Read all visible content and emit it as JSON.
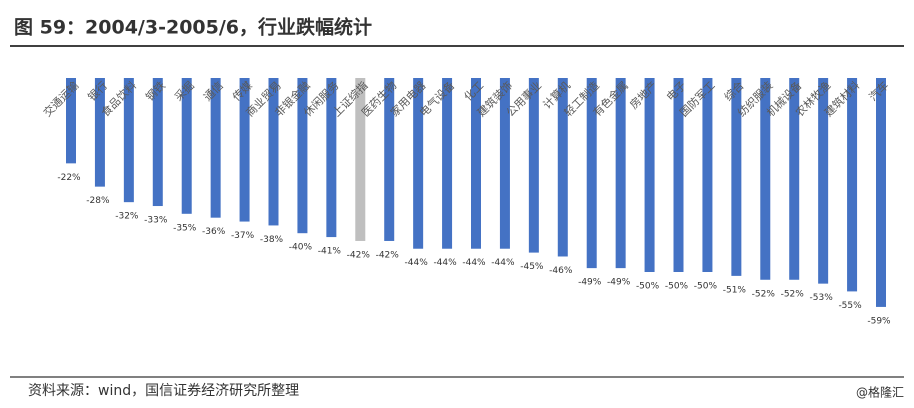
{
  "chart_data": {
    "type": "bar",
    "title": "图 59：2004/3-2005/6，行业跌幅统计",
    "source": "资料来源：wind，国信证券经济研究所整理",
    "watermark": "@格隆汇",
    "categories": [
      "交通运输",
      "银行",
      "食品饮料",
      "钢铁",
      "采掘",
      "通信",
      "传媒",
      "商业贸易",
      "非银金融",
      "休闲服务",
      "上证综指",
      "医药生物",
      "家用电器",
      "电气设备",
      "化工",
      "建筑装饰",
      "公用事业",
      "计算机",
      "轻工制造",
      "有色金属",
      "房地产",
      "电子",
      "国防军工",
      "综合",
      "纺织服装",
      "机械设备",
      "农林牧渔",
      "建筑材料",
      "汽车"
    ],
    "values": [
      -22,
      -28,
      -32,
      -33,
      -35,
      -36,
      -37,
      -38,
      -40,
      -41,
      -42,
      -42,
      -44,
      -44,
      -44,
      -44,
      -45,
      -46,
      -49,
      -49,
      -50,
      -50,
      -50,
      -51,
      -52,
      -52,
      -53,
      -55,
      -59
    ],
    "value_labels": [
      "-22%",
      "-28%",
      "-32%",
      "-33%",
      "-35%",
      "-36%",
      "-37%",
      "-38%",
      "-40%",
      "-41%",
      "-42%",
      "-42%",
      "-44%",
      "-44%",
      "-44%",
      "-44%",
      "-45%",
      "-46%",
      "-49%",
      "-49%",
      "-50%",
      "-50%",
      "-50%",
      "-51%",
      "-52%",
      "-52%",
      "-53%",
      "-55%",
      "-59%"
    ],
    "colors": [
      "#4472c4",
      "#4472c4",
      "#4472c4",
      "#4472c4",
      "#4472c4",
      "#4472c4",
      "#4472c4",
      "#4472c4",
      "#4472c4",
      "#4472c4",
      "#bfbfbf",
      "#4472c4",
      "#4472c4",
      "#4472c4",
      "#4472c4",
      "#4472c4",
      "#4472c4",
      "#4472c4",
      "#4472c4",
      "#4472c4",
      "#4472c4",
      "#4472c4",
      "#4472c4",
      "#4472c4",
      "#4472c4",
      "#4472c4",
      "#4472c4",
      "#4472c4",
      "#4472c4"
    ]
  }
}
